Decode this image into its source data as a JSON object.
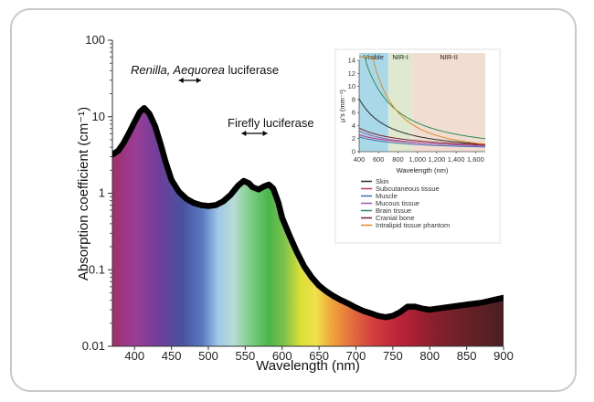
{
  "chart_data": [
    {
      "type": "line",
      "title": "",
      "xlabel": "Wavelength (nm)",
      "ylabel": "Absorption coefficient (cm⁻¹)",
      "xlim": [
        370,
        900
      ],
      "ylim": [
        0.01,
        100
      ],
      "y_scale": "log",
      "x_ticks": [
        "400",
        "450",
        "500",
        "550",
        "600",
        "650",
        "700",
        "750",
        "800",
        "850",
        "900"
      ],
      "y_ticks": [
        "0.01",
        "0.1",
        "1",
        "10",
        "100"
      ],
      "grid": false,
      "background": "visible-spectrum color gradient under curve",
      "series": [
        {
          "points": [
            [
              370,
              3.2
            ],
            [
              378,
              3.6
            ],
            [
              385,
              4.5
            ],
            [
              392,
              6.0
            ],
            [
              400,
              8.5
            ],
            [
              407,
              11.5
            ],
            [
              413,
              13.0
            ],
            [
              420,
              11.0
            ],
            [
              428,
              7.5
            ],
            [
              435,
              4.5
            ],
            [
              442,
              2.6
            ],
            [
              450,
              1.5
            ],
            [
              460,
              1.05
            ],
            [
              470,
              0.85
            ],
            [
              480,
              0.75
            ],
            [
              490,
              0.7
            ],
            [
              500,
              0.68
            ],
            [
              510,
              0.7
            ],
            [
              520,
              0.78
            ],
            [
              530,
              0.95
            ],
            [
              540,
              1.25
            ],
            [
              548,
              1.45
            ],
            [
              555,
              1.35
            ],
            [
              560,
              1.2
            ],
            [
              568,
              1.12
            ],
            [
              575,
              1.22
            ],
            [
              582,
              1.3
            ],
            [
              588,
              1.15
            ],
            [
              595,
              0.75
            ],
            [
              600,
              0.48
            ],
            [
              610,
              0.28
            ],
            [
              620,
              0.17
            ],
            [
              630,
              0.11
            ],
            [
              640,
              0.08
            ],
            [
              650,
              0.062
            ],
            [
              660,
              0.052
            ],
            [
              670,
              0.045
            ],
            [
              680,
              0.04
            ],
            [
              690,
              0.036
            ],
            [
              700,
              0.032
            ],
            [
              710,
              0.029
            ],
            [
              720,
              0.027
            ],
            [
              730,
              0.025
            ],
            [
              740,
              0.024
            ],
            [
              750,
              0.025
            ],
            [
              760,
              0.028
            ],
            [
              770,
              0.033
            ],
            [
              780,
              0.033
            ],
            [
              790,
              0.031
            ],
            [
              800,
              0.03
            ],
            [
              810,
              0.031
            ],
            [
              820,
              0.032
            ],
            [
              830,
              0.033
            ],
            [
              840,
              0.034
            ],
            [
              850,
              0.035
            ],
            [
              860,
              0.036
            ],
            [
              870,
              0.037
            ],
            [
              880,
              0.039
            ],
            [
              890,
              0.041
            ],
            [
              900,
              0.043
            ]
          ]
        }
      ],
      "annotations": [
        {
          "text_italic": "Renilla, Aequorea",
          "text": " luciferase",
          "x_range": [
            460,
            490
          ]
        },
        {
          "text": "Firefly luciferase",
          "x_range": [
            545,
            580
          ]
        }
      ]
    },
    {
      "type": "line",
      "title": "",
      "xlabel": "Wavelength (nm)",
      "ylabel": "μ’s (mm⁻¹)",
      "xlim": [
        400,
        1700
      ],
      "ylim": [
        0,
        14
      ],
      "x_ticks": [
        "400",
        "600",
        "800",
        "1,000",
        "1,200",
        "1,400",
        "1,600"
      ],
      "y_ticks": [
        "0",
        "2",
        "4",
        "6",
        "8",
        "10",
        "12",
        "14"
      ],
      "regions": [
        {
          "label": "Visible",
          "range": [
            400,
            700
          ],
          "color": "#a9d9e8"
        },
        {
          "label": "NIR-I",
          "range": [
            700,
            950
          ],
          "color": "#dfe9cf"
        },
        {
          "label": "NIR-II",
          "range": [
            950,
            1700
          ],
          "color": "#f1ddd2"
        }
      ],
      "series": [
        {
          "name": "Skin",
          "color": "#2b2b2b",
          "a": 6.0,
          "b": 1.35
        },
        {
          "name": "Subcutaneous tissue",
          "color": "#c0306f",
          "a": 2.2,
          "b": 0.7
        },
        {
          "name": "Muscle",
          "color": "#3d6fb3",
          "a": 1.9,
          "b": 0.8
        },
        {
          "name": "Mucous tissue",
          "color": "#9b59b6",
          "a": 2.6,
          "b": 0.9
        },
        {
          "name": "Brain tissue",
          "color": "#2e8b57",
          "a": 12.5,
          "b": 1.5
        },
        {
          "name": "Cranial bone",
          "color": "#7a1f2b",
          "a": 3.0,
          "b": 0.85
        },
        {
          "name": "Intralipid tissue phantom",
          "color": "#e08a2a",
          "a": 17.0,
          "b": 2.2
        }
      ]
    }
  ]
}
